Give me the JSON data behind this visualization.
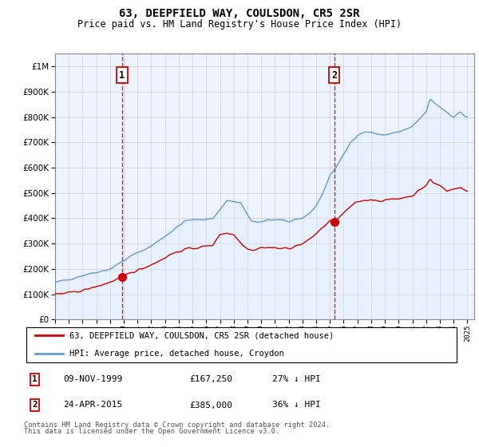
{
  "title": "63, DEEPFIELD WAY, COULSDON, CR5 2SR",
  "subtitle": "Price paid vs. HM Land Registry's House Price Index (HPI)",
  "legend_line1": "63, DEEPFIELD WAY, COULSDON, CR5 2SR (detached house)",
  "legend_line2": "HPI: Average price, detached house, Croydon",
  "footnote1": "Contains HM Land Registry data © Crown copyright and database right 2024.",
  "footnote2": "This data is licensed under the Open Government Licence v3.0.",
  "transaction1_date": "09-NOV-1999",
  "transaction1_price": "£167,250",
  "transaction1_hpi": "27% ↓ HPI",
  "transaction1_year": 1999.86,
  "transaction1_value": 167250,
  "transaction2_date": "24-APR-2015",
  "transaction2_price": "£385,000",
  "transaction2_hpi": "36% ↓ HPI",
  "transaction2_year": 2015.31,
  "transaction2_value": 385000,
  "red_color": "#cc0000",
  "blue_color": "#6699cc",
  "blue_fill_color": "#ddeeff",
  "plot_bg": "#eef4ff",
  "grid_color": "#cccccc",
  "ylim_max": 1000000,
  "xlim_start": 1995.0,
  "xlim_end": 2025.5
}
